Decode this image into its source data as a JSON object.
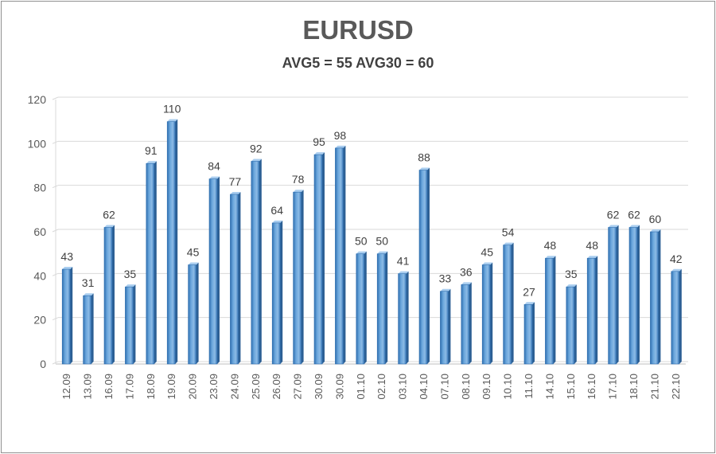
{
  "chart_data": {
    "type": "bar",
    "title": "EURUSD",
    "subtitle": "AVG5 = 55 AVG30 = 60",
    "xlabel": "",
    "ylabel": "",
    "ylim": [
      0,
      120
    ],
    "yticks": [
      0,
      20,
      40,
      60,
      80,
      100,
      120
    ],
    "grid": true,
    "legend": "none",
    "bar_color": "#5b9bd5",
    "categories": [
      "12.09",
      "13.09",
      "16.09",
      "17.09",
      "18.09",
      "19.09",
      "20.09",
      "23.09",
      "24.09",
      "25.09",
      "26.09",
      "27.09",
      "30.09",
      "30.09",
      "01.10",
      "02.10",
      "03.10",
      "04.10",
      "07.10",
      "08.10",
      "09.10",
      "10.10",
      "11.10",
      "14.10",
      "15.10",
      "16.10",
      "17.10",
      "18.10",
      "21.10",
      "22.10"
    ],
    "values": [
      43,
      31,
      62,
      35,
      91,
      110,
      45,
      84,
      77,
      92,
      64,
      78,
      95,
      98,
      50,
      50,
      41,
      88,
      33,
      36,
      45,
      54,
      27,
      48,
      35,
      48,
      62,
      62,
      60,
      42
    ]
  }
}
